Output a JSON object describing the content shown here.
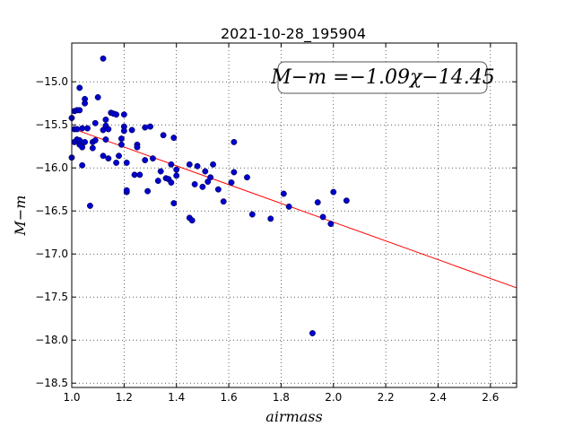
{
  "chart_data": {
    "type": "scatter",
    "title": "2021-10-28_195904",
    "xlabel": "airmass",
    "ylabel": "M−m",
    "xlim": [
      1.0,
      2.7
    ],
    "ylim": [
      -18.55,
      -14.55
    ],
    "xticks": [
      1.0,
      1.2,
      1.4,
      1.6,
      1.8,
      2.0,
      2.2,
      2.4,
      2.6
    ],
    "xtick_labels": [
      "1.0",
      "1.2",
      "1.4",
      "1.6",
      "1.8",
      "2.0",
      "2.2",
      "2.4",
      "2.6"
    ],
    "yticks": [
      -15.0,
      -15.5,
      -16.0,
      -16.5,
      -17.0,
      -17.5,
      -18.0,
      -18.5
    ],
    "ytick_labels": [
      "−15.0",
      "−15.5",
      "−16.0",
      "−16.5",
      "−17.0",
      "−17.5",
      "−18.0",
      "−18.5"
    ],
    "grid": true,
    "annotation": "M−m =−1.09χ−14.45",
    "fit": {
      "slope": -1.09,
      "intercept": -14.45,
      "color": "#ff0000",
      "x_range": [
        1.0,
        2.7
      ]
    },
    "point_color": "#0000cc",
    "points": [
      [
        1.0,
        -15.42
      ],
      [
        1.0,
        -15.88
      ],
      [
        1.01,
        -15.55
      ],
      [
        1.01,
        -15.34
      ],
      [
        1.01,
        -15.7
      ],
      [
        1.02,
        -15.33
      ],
      [
        1.02,
        -15.67
      ],
      [
        1.02,
        -15.55
      ],
      [
        1.03,
        -15.07
      ],
      [
        1.03,
        -15.33
      ],
      [
        1.03,
        -15.73
      ],
      [
        1.03,
        -15.68
      ],
      [
        1.04,
        -15.54
      ],
      [
        1.04,
        -15.76
      ],
      [
        1.04,
        -15.97
      ],
      [
        1.05,
        -15.2
      ],
      [
        1.05,
        -15.25
      ],
      [
        1.05,
        -15.7
      ],
      [
        1.06,
        -15.54
      ],
      [
        1.07,
        -16.44
      ],
      [
        1.08,
        -15.77
      ],
      [
        1.08,
        -15.7
      ],
      [
        1.09,
        -15.68
      ],
      [
        1.09,
        -15.48
      ],
      [
        1.1,
        -15.18
      ],
      [
        1.12,
        -14.73
      ],
      [
        1.12,
        -15.56
      ],
      [
        1.12,
        -15.86
      ],
      [
        1.13,
        -15.44
      ],
      [
        1.13,
        -15.51
      ],
      [
        1.13,
        -15.67
      ],
      [
        1.14,
        -15.89
      ],
      [
        1.14,
        -15.55
      ],
      [
        1.15,
        -15.36
      ],
      [
        1.16,
        -15.37
      ],
      [
        1.17,
        -15.94
      ],
      [
        1.17,
        -15.38
      ],
      [
        1.18,
        -15.86
      ],
      [
        1.19,
        -15.66
      ],
      [
        1.19,
        -15.73
      ],
      [
        1.2,
        -15.38
      ],
      [
        1.2,
        -15.52
      ],
      [
        1.2,
        -15.57
      ],
      [
        1.21,
        -15.94
      ],
      [
        1.21,
        -16.28
      ],
      [
        1.21,
        -16.26
      ],
      [
        1.23,
        -15.56
      ],
      [
        1.24,
        -16.08
      ],
      [
        1.25,
        -15.73
      ],
      [
        1.25,
        -15.76
      ],
      [
        1.26,
        -16.08
      ],
      [
        1.28,
        -15.53
      ],
      [
        1.28,
        -15.91
      ],
      [
        1.29,
        -16.27
      ],
      [
        1.3,
        -15.52
      ],
      [
        1.31,
        -15.89
      ],
      [
        1.33,
        -16.15
      ],
      [
        1.34,
        -16.04
      ],
      [
        1.35,
        -15.62
      ],
      [
        1.36,
        -16.12
      ],
      [
        1.37,
        -16.13
      ],
      [
        1.38,
        -15.96
      ],
      [
        1.38,
        -16.17
      ],
      [
        1.39,
        -15.65
      ],
      [
        1.39,
        -16.41
      ],
      [
        1.4,
        -16.02
      ],
      [
        1.4,
        -16.09
      ],
      [
        1.45,
        -15.96
      ],
      [
        1.45,
        -16.58
      ],
      [
        1.46,
        -16.61
      ],
      [
        1.47,
        -16.19
      ],
      [
        1.48,
        -15.98
      ],
      [
        1.5,
        -16.22
      ],
      [
        1.51,
        -16.04
      ],
      [
        1.52,
        -16.16
      ],
      [
        1.53,
        -16.11
      ],
      [
        1.54,
        -15.96
      ],
      [
        1.56,
        -16.25
      ],
      [
        1.58,
        -16.39
      ],
      [
        1.61,
        -16.17
      ],
      [
        1.62,
        -16.05
      ],
      [
        1.62,
        -15.7
      ],
      [
        1.67,
        -16.11
      ],
      [
        1.69,
        -16.54
      ],
      [
        1.76,
        -16.59
      ],
      [
        1.81,
        -16.3
      ],
      [
        1.83,
        -16.45
      ],
      [
        1.92,
        -17.92
      ],
      [
        1.94,
        -16.4
      ],
      [
        1.96,
        -16.57
      ],
      [
        1.99,
        -16.65
      ],
      [
        2.0,
        -16.28
      ],
      [
        2.05,
        -16.38
      ]
    ]
  }
}
